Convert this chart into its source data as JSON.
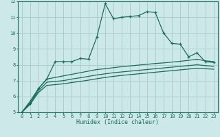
{
  "title": "",
  "xlabel": "Humidex (Indice chaleur)",
  "bg_color": "#cce8e8",
  "grid_color": "#aacece",
  "line_color": "#1a6b5a",
  "xlim": [
    -0.5,
    23.5
  ],
  "ylim": [
    5,
    12
  ],
  "xticks": [
    0,
    1,
    2,
    3,
    4,
    5,
    6,
    7,
    8,
    9,
    10,
    11,
    12,
    13,
    14,
    15,
    16,
    17,
    18,
    19,
    20,
    21,
    22,
    23
  ],
  "yticks": [
    5,
    6,
    7,
    8,
    9,
    10,
    11,
    12
  ],
  "series1_x": [
    0,
    1,
    2,
    3,
    4,
    5,
    6,
    7,
    8,
    9,
    10,
    11,
    12,
    13,
    14,
    15,
    16,
    17,
    18,
    19,
    20,
    21,
    22,
    23
  ],
  "series1_y": [
    5.0,
    5.55,
    6.5,
    7.1,
    8.2,
    8.2,
    8.2,
    8.4,
    8.35,
    9.75,
    11.85,
    10.9,
    11.0,
    11.05,
    11.1,
    11.35,
    11.3,
    10.0,
    9.35,
    9.3,
    8.5,
    8.75,
    8.2,
    8.15
  ],
  "series2_x": [
    0,
    1,
    2,
    3,
    4,
    5,
    6,
    7,
    8,
    9,
    10,
    11,
    12,
    13,
    14,
    15,
    16,
    17,
    18,
    19,
    20,
    21,
    22,
    23
  ],
  "series2_y": [
    5.0,
    5.7,
    6.5,
    7.1,
    7.2,
    7.3,
    7.4,
    7.5,
    7.6,
    7.7,
    7.75,
    7.82,
    7.88,
    7.93,
    7.98,
    8.03,
    8.08,
    8.12,
    8.17,
    8.22,
    8.28,
    8.35,
    8.25,
    8.2
  ],
  "series3_x": [
    0,
    1,
    2,
    3,
    4,
    5,
    6,
    7,
    8,
    9,
    10,
    11,
    12,
    13,
    14,
    15,
    16,
    17,
    18,
    19,
    20,
    21,
    22,
    23
  ],
  "series3_y": [
    5.0,
    5.6,
    6.35,
    6.9,
    6.95,
    7.0,
    7.1,
    7.18,
    7.27,
    7.36,
    7.43,
    7.5,
    7.55,
    7.6,
    7.65,
    7.7,
    7.75,
    7.8,
    7.85,
    7.9,
    7.95,
    8.0,
    7.95,
    7.9
  ],
  "series4_x": [
    0,
    1,
    2,
    3,
    4,
    5,
    6,
    7,
    8,
    9,
    10,
    11,
    12,
    13,
    14,
    15,
    16,
    17,
    18,
    19,
    20,
    21,
    22,
    23
  ],
  "series4_y": [
    5.0,
    5.5,
    6.25,
    6.7,
    6.75,
    6.8,
    6.88,
    6.95,
    7.03,
    7.12,
    7.2,
    7.27,
    7.33,
    7.38,
    7.43,
    7.48,
    7.53,
    7.58,
    7.63,
    7.68,
    7.73,
    7.78,
    7.75,
    7.72
  ]
}
